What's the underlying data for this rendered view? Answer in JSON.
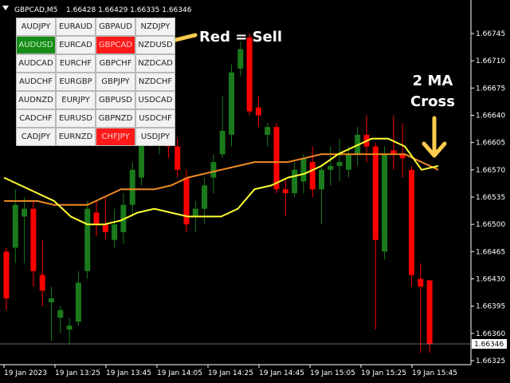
{
  "header": {
    "symbol": "GBPCAD,M5",
    "ohlc": "1.66428 1.66429 1.66335 1.66346"
  },
  "current_price": "1.66346",
  "pairs": [
    {
      "label": "AUDJPY",
      "state": "neutral"
    },
    {
      "label": "EURAUD",
      "state": "neutral"
    },
    {
      "label": "GBPAUD",
      "state": "neutral"
    },
    {
      "label": "NZDJPY",
      "state": "neutral"
    },
    {
      "label": "AUDUSD",
      "state": "buy"
    },
    {
      "label": "EURCAD",
      "state": "neutral"
    },
    {
      "label": "GBPCAD",
      "state": "sell"
    },
    {
      "label": "NZDUSD",
      "state": "neutral"
    },
    {
      "label": "AUDCAD",
      "state": "neutral"
    },
    {
      "label": "EURCHF",
      "state": "neutral"
    },
    {
      "label": "GBPCHF",
      "state": "neutral"
    },
    {
      "label": "NZDCAD",
      "state": "neutral"
    },
    {
      "label": "AUDCHF",
      "state": "neutral"
    },
    {
      "label": "EURGBP",
      "state": "neutral"
    },
    {
      "label": "GBPJPY",
      "state": "neutral"
    },
    {
      "label": "NZDCHF",
      "state": "neutral"
    },
    {
      "label": "AUDNZD",
      "state": "neutral"
    },
    {
      "label": "EURJPY",
      "state": "neutral"
    },
    {
      "label": "GBPUSD",
      "state": "neutral"
    },
    {
      "label": "USDCAD",
      "state": "neutral"
    },
    {
      "label": "CADCHF",
      "state": "neutral"
    },
    {
      "label": "EURUSD",
      "state": "neutral"
    },
    {
      "label": "GBPNZD",
      "state": "neutral"
    },
    {
      "label": "USDCHF",
      "state": "neutral"
    },
    {
      "label": "CADJPY",
      "state": "neutral"
    },
    {
      "label": "EURNZD",
      "state": "neutral"
    },
    {
      "label": "CHFJPY",
      "state": "sell"
    },
    {
      "label": "USDJPY",
      "state": "neutral"
    }
  ],
  "annotations": {
    "sell_note": "Red = Sell",
    "cross_line1": "2 MA",
    "cross_line2": "Cross"
  },
  "colors": {
    "bull": "#1b7a1b",
    "bear": "#ff0000",
    "ma_fast": "#ffff33",
    "ma_slow": "#f08a24",
    "arrow": "#ffcc4d"
  },
  "chart_data": {
    "type": "candlestick",
    "ylim": [
      1.66325,
      1.66785
    ],
    "yticks": [
      "1.66745",
      "1.66710",
      "1.66675",
      "1.66640",
      "1.66605",
      "1.66570",
      "1.66535",
      "1.66500",
      "1.66465",
      "1.66430",
      "1.66395",
      "1.66360",
      "1.66325"
    ],
    "xticks": [
      "19 Jan 2023",
      "19 Jan 13:25",
      "19 Jan 13:45",
      "19 Jan 14:05",
      "19 Jan 14:25",
      "19 Jan 14:45",
      "19 Jan 15:05",
      "19 Jan 15:25",
      "19 Jan 15:45"
    ],
    "candles": [
      [
        1.66465,
        1.6647,
        1.6639,
        1.66405
      ],
      [
        1.6647,
        1.66545,
        1.6645,
        1.66525
      ],
      [
        1.6651,
        1.66535,
        1.6645,
        1.6652
      ],
      [
        1.6652,
        1.6653,
        1.6642,
        1.6644
      ],
      [
        1.66435,
        1.6648,
        1.66395,
        1.66415
      ],
      [
        1.664,
        1.6642,
        1.6635,
        1.66405
      ],
      [
        1.6638,
        1.66395,
        1.6636,
        1.6639
      ],
      [
        1.66365,
        1.6638,
        1.66345,
        1.6637
      ],
      [
        1.66375,
        1.6644,
        1.6637,
        1.66425
      ],
      [
        1.6644,
        1.6653,
        1.6643,
        1.6652
      ],
      [
        1.66515,
        1.6653,
        1.66485,
        1.665
      ],
      [
        1.665,
        1.66535,
        1.6648,
        1.6649
      ],
      [
        1.6648,
        1.6652,
        1.6647,
        1.665
      ],
      [
        1.6649,
        1.6654,
        1.66475,
        1.66525
      ],
      [
        1.66525,
        1.6658,
        1.6651,
        1.6657
      ],
      [
        1.6656,
        1.6665,
        1.6655,
        1.6664
      ],
      [
        1.6664,
        1.6666,
        1.666,
        1.66605
      ],
      [
        1.6661,
        1.66625,
        1.6659,
        1.66615
      ],
      [
        1.66615,
        1.66635,
        1.66585,
        1.666
      ],
      [
        1.666,
        1.6661,
        1.6656,
        1.6657
      ],
      [
        1.6656,
        1.6657,
        1.6649,
        1.665
      ],
      [
        1.6651,
        1.6653,
        1.6649,
        1.6652
      ],
      [
        1.6652,
        1.6656,
        1.665,
        1.6655
      ],
      [
        1.6656,
        1.6659,
        1.6654,
        1.6658
      ],
      [
        1.6659,
        1.66665,
        1.66585,
        1.6662
      ],
      [
        1.66615,
        1.66705,
        1.666,
        1.66695
      ],
      [
        1.667,
        1.66735,
        1.6669,
        1.66725
      ],
      [
        1.6674,
        1.66745,
        1.6664,
        1.66645
      ],
      [
        1.6665,
        1.66665,
        1.66625,
        1.6664
      ],
      [
        1.66615,
        1.6663,
        1.666,
        1.66625
      ],
      [
        1.66625,
        1.6663,
        1.6654,
        1.66545
      ],
      [
        1.66545,
        1.6656,
        1.6651,
        1.6654
      ],
      [
        1.6654,
        1.6658,
        1.66535,
        1.6657
      ],
      [
        1.66555,
        1.6659,
        1.6654,
        1.66585
      ],
      [
        1.6658,
        1.666,
        1.66535,
        1.66545
      ],
      [
        1.66545,
        1.66575,
        1.665,
        1.6657
      ],
      [
        1.6657,
        1.666,
        1.6655,
        1.66575
      ],
      [
        1.66575,
        1.6661,
        1.66555,
        1.6658
      ],
      [
        1.6657,
        1.666,
        1.6656,
        1.6659
      ],
      [
        1.6659,
        1.66625,
        1.66575,
        1.66615
      ],
      [
        1.66615,
        1.6664,
        1.6658,
        1.666
      ],
      [
        1.666,
        1.66605,
        1.66365,
        1.6648
      ],
      [
        1.66465,
        1.666,
        1.66455,
        1.6659
      ],
      [
        1.66595,
        1.6664,
        1.6657,
        1.6659
      ],
      [
        1.6659,
        1.6663,
        1.6656,
        1.66585
      ],
      [
        1.6657,
        1.66575,
        1.6642,
        1.66435
      ],
      [
        1.6643,
        1.6645,
        1.66335,
        1.6642
      ],
      [
        1.66428,
        1.66429,
        1.66335,
        1.66346
      ]
    ],
    "ma_fast": [
      1.6656,
      1.6655,
      1.6654,
      1.6653,
      1.6651,
      1.665,
      1.665,
      1.66505,
      1.66515,
      1.6652,
      1.66515,
      1.6651,
      1.6651,
      1.6651,
      1.6652,
      1.66545,
      1.6655,
      1.6656,
      1.66565,
      1.66575,
      1.6659,
      1.666,
      1.6661,
      1.6661,
      1.666,
      1.6657,
      1.66575
    ],
    "ma_slow": [
      1.6653,
      1.6653,
      1.6653,
      1.66525,
      1.66525,
      1.66525,
      1.66535,
      1.66545,
      1.66545,
      1.66545,
      1.6655,
      1.6656,
      1.66565,
      1.6657,
      1.66575,
      1.6658,
      1.6658,
      1.6658,
      1.66585,
      1.6659,
      1.6659,
      1.6659,
      1.6659,
      1.6659,
      1.6659,
      1.6658,
      1.6657
    ]
  }
}
